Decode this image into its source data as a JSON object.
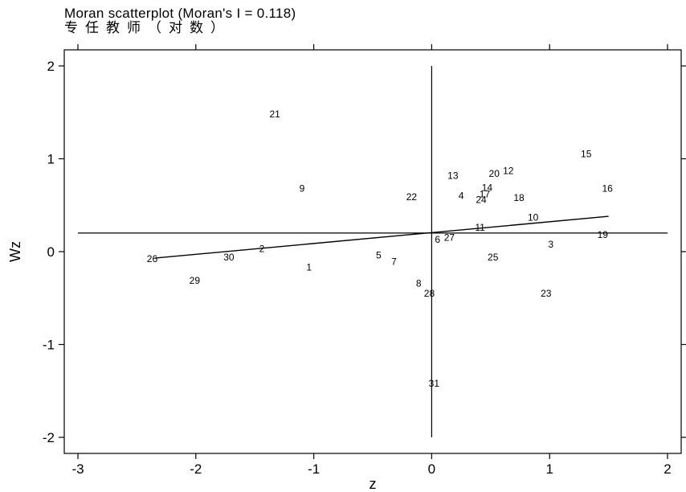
{
  "title_line1": "Moran scatterplot (Moran's I = 0.118)",
  "title_line2": "专任教师（对数）",
  "chart_data": {
    "type": "scatter",
    "title": "Moran scatterplot (Moran's I = 0.118)",
    "subtitle": "专任教师（对数）",
    "xlabel": "z",
    "ylabel": "Wz",
    "xlim": [
      -3,
      2
    ],
    "ylim": [
      -2,
      2
    ],
    "xticks": [
      -3,
      -2,
      -1,
      0,
      1,
      2
    ],
    "yticks": [
      -2,
      -1,
      0,
      1,
      2
    ],
    "grid": false,
    "mean_lines": {
      "x": 0,
      "y": 0.2
    },
    "fit_line": {
      "x": [
        -2.35,
        1.5
      ],
      "y": [
        -0.07,
        0.38
      ]
    },
    "points": [
      {
        "label": "1",
        "x": -1.04,
        "y": -0.17
      },
      {
        "label": "2",
        "x": -1.44,
        "y": 0.03
      },
      {
        "label": "3",
        "x": 1.01,
        "y": 0.08
      },
      {
        "label": "4",
        "x": 0.25,
        "y": 0.6
      },
      {
        "label": "5",
        "x": -0.45,
        "y": -0.04
      },
      {
        "label": "6",
        "x": 0.05,
        "y": 0.13
      },
      {
        "label": "7",
        "x": -0.32,
        "y": -0.11
      },
      {
        "label": "8",
        "x": -0.11,
        "y": -0.34
      },
      {
        "label": "9",
        "x": -1.1,
        "y": 0.68
      },
      {
        "label": "10",
        "x": 0.86,
        "y": 0.37
      },
      {
        "label": "11",
        "x": 0.41,
        "y": 0.26
      },
      {
        "label": "12",
        "x": 0.65,
        "y": 0.87
      },
      {
        "label": "13",
        "x": 0.18,
        "y": 0.82
      },
      {
        "label": "14",
        "x": 0.47,
        "y": 0.69
      },
      {
        "label": "15",
        "x": 1.31,
        "y": 1.05
      },
      {
        "label": "16",
        "x": 1.49,
        "y": 0.68
      },
      {
        "label": "17",
        "x": 0.45,
        "y": 0.62
      },
      {
        "label": "18",
        "x": 0.74,
        "y": 0.58
      },
      {
        "label": "19",
        "x": 1.45,
        "y": 0.18
      },
      {
        "label": "20",
        "x": 0.53,
        "y": 0.84
      },
      {
        "label": "21",
        "x": -1.33,
        "y": 1.48
      },
      {
        "label": "22",
        "x": -0.17,
        "y": 0.59
      },
      {
        "label": "23",
        "x": 0.97,
        "y": -0.45
      },
      {
        "label": "24",
        "x": 0.42,
        "y": 0.56
      },
      {
        "label": "25",
        "x": 0.52,
        "y": -0.06
      },
      {
        "label": "26",
        "x": -2.37,
        "y": -0.08
      },
      {
        "label": "27",
        "x": 0.15,
        "y": 0.15
      },
      {
        "label": "28",
        "x": -0.02,
        "y": -0.45
      },
      {
        "label": "29",
        "x": -2.01,
        "y": -0.31
      },
      {
        "label": "30",
        "x": -1.72,
        "y": -0.06
      },
      {
        "label": "31",
        "x": 0.02,
        "y": -1.42
      }
    ]
  }
}
